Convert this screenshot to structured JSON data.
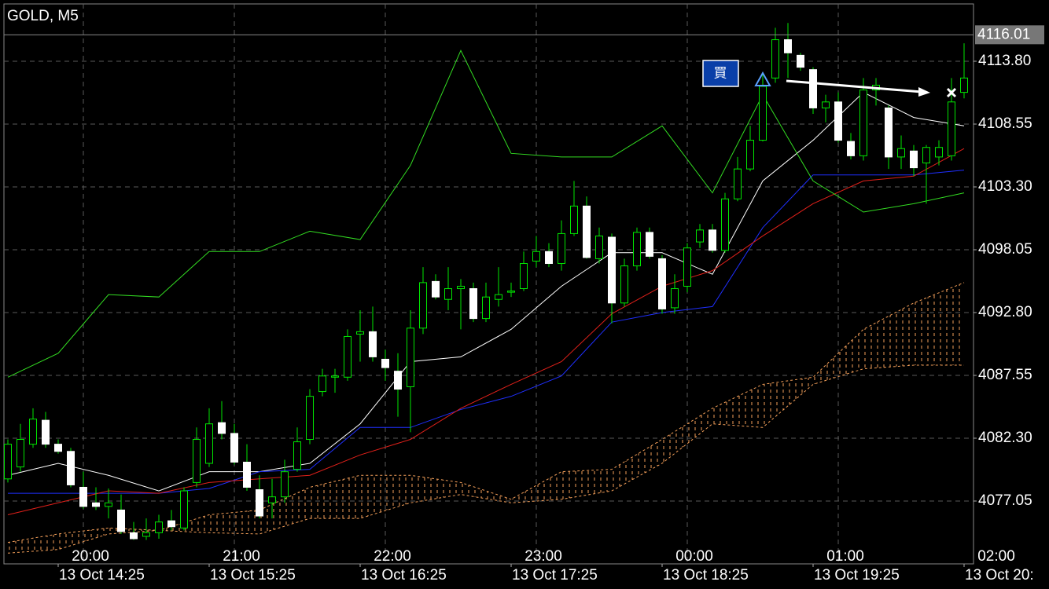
{
  "chart_data": {
    "type": "candlestick",
    "title": "GOLD, M5",
    "annotation": "買",
    "ylim": [
      4071.8,
      4118.59
    ],
    "xlim": [
      -0.3125,
      76.75
    ],
    "grid": true,
    "yticks": [
      {
        "value": 4113.8,
        "label": "4113.80"
      },
      {
        "value": 4108.55,
        "label": "4108.55"
      },
      {
        "value": 4103.3,
        "label": "4103.30"
      },
      {
        "value": 4098.05,
        "label": "4098.05"
      },
      {
        "value": 4092.8,
        "label": "4092.80"
      },
      {
        "value": 4087.55,
        "label": "4087.55"
      },
      {
        "value": 4082.3,
        "label": "4082.30"
      },
      {
        "value": 4077.05,
        "label": "4077.05"
      }
    ],
    "current_price": {
      "value": 4116.01,
      "label": "4116.01"
    },
    "xticks": [
      {
        "value": 6,
        "label": "20:00"
      },
      {
        "value": 18,
        "label": "21:00"
      },
      {
        "value": 30,
        "label": "22:00"
      },
      {
        "value": 42,
        "label": "23:00"
      },
      {
        "value": 54,
        "label": "00:00"
      },
      {
        "value": 66,
        "label": "01:00"
      },
      {
        "value": 78,
        "label": "02:00"
      }
    ],
    "xticks2": [
      {
        "value": 4,
        "label": "13 Oct 14:25"
      },
      {
        "value": 16,
        "label": "13 Oct 15:25"
      },
      {
        "value": 28,
        "label": "13 Oct 16:25"
      },
      {
        "value": 40,
        "label": "13 Oct 17:25"
      },
      {
        "value": 52,
        "label": "13 Oct 18:25"
      },
      {
        "value": 64,
        "label": "13 Oct 19:25"
      },
      {
        "value": 76,
        "label": "13 Oct 20:"
      }
    ],
    "up_color": "#00e600",
    "down_color": "#ffffff",
    "wick_color": "#00e600",
    "ohlc": [
      [
        4078.9,
        4082.2,
        4078.6,
        4081.8
      ],
      [
        4079.9,
        4083.5,
        4079.5,
        4082.2
      ],
      [
        4081.8,
        4084.8,
        4081.5,
        4083.9
      ],
      [
        4083.8,
        4084.5,
        4081.5,
        4081.8
      ],
      [
        4081.8,
        4082.2,
        4081.0,
        4081.2
      ],
      [
        4081.2,
        4081.5,
        4078.2,
        4078.4
      ],
      [
        4078.2,
        4079.5,
        4076.4,
        4076.6
      ],
      [
        4076.9,
        4078.2,
        4076.3,
        4076.6
      ],
      [
        4076.6,
        4078.1,
        4075.6,
        4076.9
      ],
      [
        4076.3,
        4077.6,
        4074.3,
        4074.5
      ],
      [
        4074.4,
        4075.3,
        4073.8,
        4073.9
      ],
      [
        4074.1,
        4075.6,
        4073.8,
        4074.4
      ],
      [
        4074.4,
        4075.9,
        4073.9,
        4075.3
      ],
      [
        4075.4,
        4076.3,
        4074.6,
        4074.9
      ],
      [
        4074.8,
        4078.2,
        4074.6,
        4077.9
      ],
      [
        4078.6,
        4083.2,
        4078.2,
        4082.2
      ],
      [
        4080.2,
        4084.8,
        4079.9,
        4083.5
      ],
      [
        4083.6,
        4085.4,
        4082.2,
        4082.7
      ],
      [
        4082.7,
        4083.5,
        4080.1,
        4080.3
      ],
      [
        4080.3,
        4081.8,
        4077.9,
        4078.2
      ],
      [
        4078.0,
        4079.2,
        4075.6,
        4075.8
      ],
      [
        4076.9,
        4078.9,
        4075.6,
        4077.4
      ],
      [
        4077.4,
        4080.5,
        4076.9,
        4079.5
      ],
      [
        4079.7,
        4083.2,
        4079.5,
        4082.0
      ],
      [
        4082.2,
        4086.4,
        4081.8,
        4085.8
      ],
      [
        4086.2,
        4088.1,
        4085.8,
        4087.5
      ],
      [
        4087.4,
        4088.1,
        4086.1,
        4087.5
      ],
      [
        4087.4,
        4091.4,
        4087.1,
        4090.8
      ],
      [
        4091.0,
        4093.0,
        4088.7,
        4091.2
      ],
      [
        4091.2,
        4093.3,
        4088.7,
        4089.1
      ],
      [
        4088.9,
        4089.7,
        4087.1,
        4088.2
      ],
      [
        4087.9,
        4089.4,
        4084.1,
        4086.4
      ],
      [
        4086.6,
        4093.0,
        4082.8,
        4091.5
      ],
      [
        4091.5,
        4096.6,
        4091.0,
        4095.3
      ],
      [
        4095.4,
        4096.0,
        4093.9,
        4094.1
      ],
      [
        4093.9,
        4096.6,
        4093.0,
        4094.8
      ],
      [
        4094.8,
        4095.6,
        4091.4,
        4095.0
      ],
      [
        4094.8,
        4095.3,
        4092.0,
        4092.3
      ],
      [
        4092.3,
        4095.3,
        4092.0,
        4094.1
      ],
      [
        4093.9,
        4096.6,
        4093.3,
        4094.3
      ],
      [
        4094.5,
        4095.3,
        4094.1,
        4094.6
      ],
      [
        4094.8,
        4097.9,
        4094.6,
        4096.9
      ],
      [
        4097.1,
        4099.2,
        4096.6,
        4097.9
      ],
      [
        4097.9,
        4098.6,
        4096.6,
        4096.9
      ],
      [
        4096.9,
        4100.5,
        4096.3,
        4099.4
      ],
      [
        4099.4,
        4103.8,
        4099.2,
        4101.7
      ],
      [
        4101.7,
        4102.5,
        4097.3,
        4097.4
      ],
      [
        4097.3,
        4099.9,
        4096.9,
        4099.2
      ],
      [
        4099.1,
        4099.4,
        4091.9,
        4093.6
      ],
      [
        4093.6,
        4097.3,
        4093.3,
        4096.7
      ],
      [
        4096.7,
        4099.9,
        4096.3,
        4099.5
      ],
      [
        4099.5,
        4099.9,
        4097.3,
        4097.5
      ],
      [
        4097.3,
        4097.6,
        4092.7,
        4093.1
      ],
      [
        4093.2,
        4096.0,
        4092.7,
        4094.8
      ],
      [
        4095.0,
        4098.6,
        4094.5,
        4098.2
      ],
      [
        4098.7,
        4100.2,
        4098.2,
        4099.7
      ],
      [
        4099.7,
        4100.2,
        4097.8,
        4098.0
      ],
      [
        4098.0,
        4102.8,
        4097.8,
        4102.3
      ],
      [
        4102.3,
        4105.8,
        4102.1,
        4104.8
      ],
      [
        4104.8,
        4108.4,
        4104.6,
        4107.2
      ],
      [
        4107.2,
        4112.7,
        4107.1,
        4111.7
      ],
      [
        4112.4,
        4116.6,
        4112.0,
        4115.6
      ],
      [
        4115.6,
        4117.0,
        4112.4,
        4114.5
      ],
      [
        4114.3,
        4114.5,
        4113.0,
        4113.3
      ],
      [
        4113.1,
        4113.3,
        4109.4,
        4109.9
      ],
      [
        4109.9,
        4111.0,
        4108.7,
        4110.4
      ],
      [
        4110.4,
        4111.2,
        4107.0,
        4107.2
      ],
      [
        4107.1,
        4107.8,
        4105.6,
        4105.9
      ],
      [
        4105.9,
        4112.4,
        4105.5,
        4111.4
      ],
      [
        4111.4,
        4112.4,
        4110.1,
        4111.8
      ],
      [
        4109.9,
        4110.1,
        4104.8,
        4105.8
      ],
      [
        4105.8,
        4107.6,
        4104.8,
        4106.5
      ],
      [
        4106.3,
        4106.8,
        4104.2,
        4104.9
      ],
      [
        4105.3,
        4106.8,
        4101.9,
        4106.6
      ],
      [
        4105.8,
        4107.2,
        4105.1,
        4106.6
      ],
      [
        4105.9,
        4112.4,
        4105.5,
        4110.4
      ],
      [
        4111.2,
        4115.3,
        4110.7,
        4112.4
      ]
    ],
    "indicator_x": [
      0,
      4,
      8,
      12,
      16,
      20,
      24,
      28,
      32,
      36,
      40,
      44,
      48,
      52,
      56,
      60,
      64,
      68,
      72,
      76
    ],
    "series": [
      {
        "color": "#ffffff",
        "values": [
          4079.2,
          4080.2,
          4079.2,
          4077.9,
          4079.5,
          4079.5,
          4080.2,
          4083.5,
          4088.7,
          4089.1,
          4091.4,
          4095.0,
          4097.8,
          4097.8,
          4096.0,
          4103.8,
          4107.2,
          4111.2,
          4109.1,
          4108.4
        ]
      },
      {
        "color": "#1f2fff",
        "values": [
          4077.7,
          4077.7,
          4077.7,
          4077.7,
          4078.1,
          4079.5,
          4079.7,
          4083.2,
          4083.2,
          4084.7,
          4085.8,
          4087.5,
          4092.0,
          4092.8,
          4093.3,
          4099.9,
          4104.3,
          4104.3,
          4104.3,
          4104.7
        ]
      },
      {
        "color": "#e0201a",
        "values": [
          4075.9,
          4076.9,
          4077.9,
          4077.7,
          4078.6,
          4078.9,
          4079.2,
          4080.9,
          4082.2,
          4084.8,
          4086.8,
          4088.7,
          4092.7,
          4095.0,
          4096.3,
          4099.2,
          4101.9,
          4103.8,
          4104.2,
          4106.5
        ]
      },
      {
        "color": "#33dd22",
        "values": [
          4087.4,
          4089.4,
          4094.3,
          4094.1,
          4097.9,
          4097.9,
          4099.6,
          4098.9,
          4105.1,
          4114.7,
          4106.1,
          4105.8,
          4105.8,
          4108.4,
          4102.8,
          4111.0,
          4103.8,
          4101.2,
          4101.9,
          4102.8
        ]
      }
    ],
    "cloud": {
      "color": "#f5a05a",
      "span_a": [
        4073.6,
        4074.3,
        4074.8,
        4074.6,
        4075.9,
        4076.3,
        4078.2,
        4079.2,
        4079.2,
        4078.6,
        4077.2,
        4079.5,
        4079.7,
        4082.2,
        4084.8,
        4086.8,
        4087.4,
        4091.4,
        4093.6,
        4095.3
      ],
      "span_b": [
        4072.7,
        4073.0,
        4074.3,
        4074.6,
        4074.4,
        4074.3,
        4075.6,
        4075.6,
        4076.9,
        4077.6,
        4076.9,
        4077.2,
        4077.9,
        4080.2,
        4083.5,
        4083.2,
        4086.8,
        4088.1,
        4088.4,
        4088.4
      ]
    }
  }
}
